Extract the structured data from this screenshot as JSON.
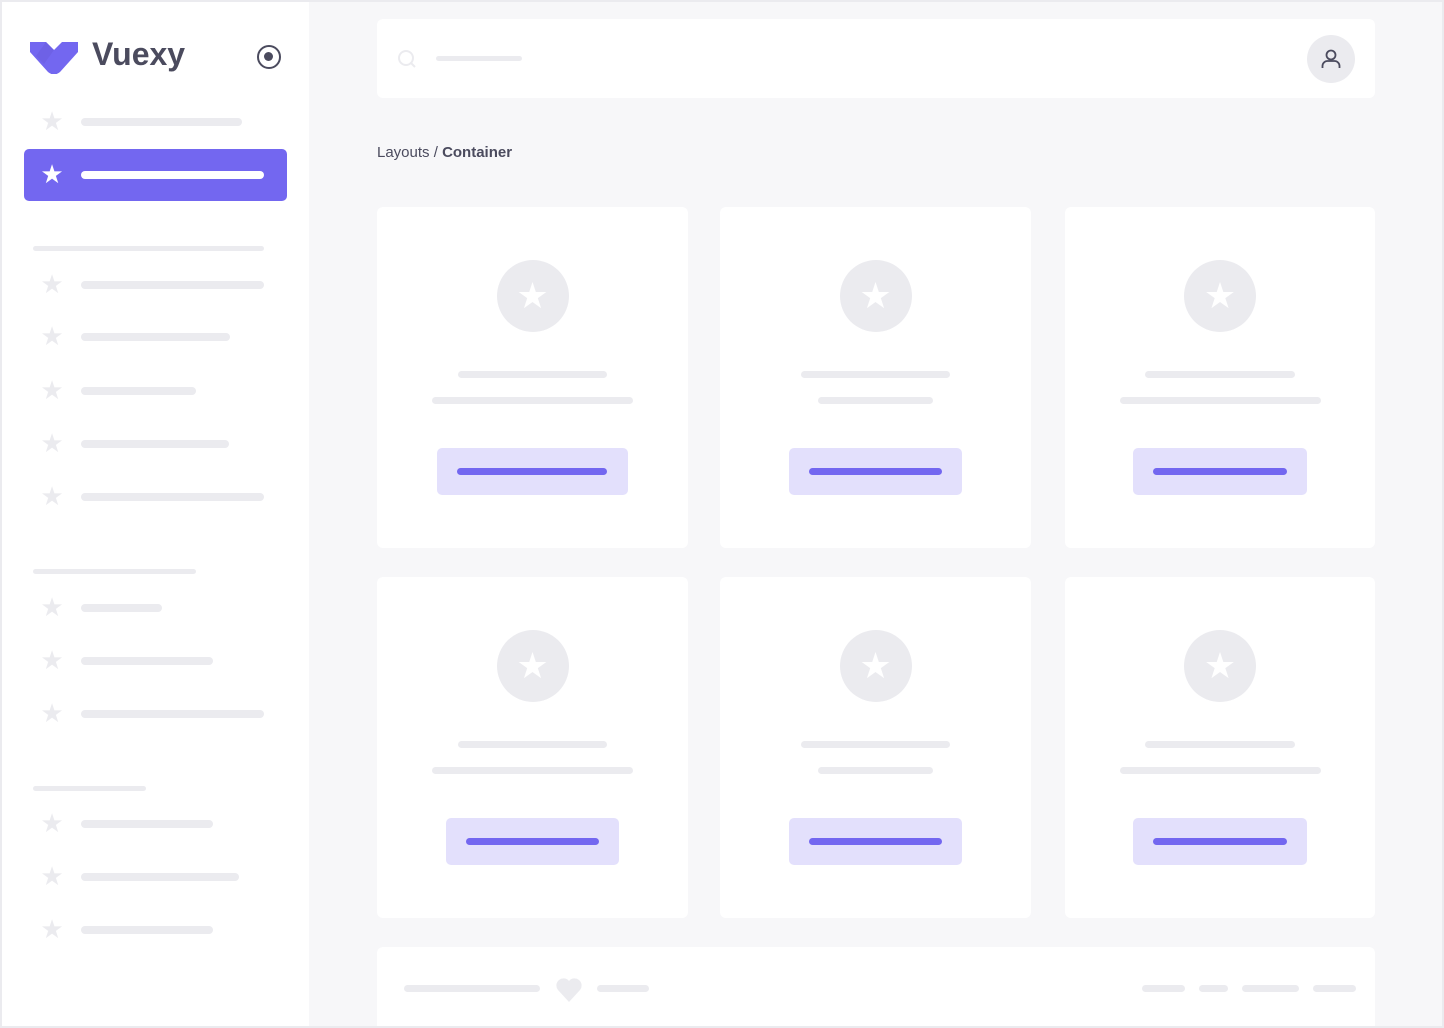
{
  "brand": {
    "name": "Vuexy",
    "color": "#7367f0"
  },
  "sidebar": {
    "toggle_icon": "radio-circle-icon",
    "active_index": 1
  },
  "topbar": {
    "search_icon": "search-icon",
    "avatar_icon": "user-icon"
  },
  "breadcrumb": {
    "parent": "Layouts",
    "separator": "/",
    "current": "Container"
  },
  "footer": {
    "icon": "heart-icon"
  },
  "colors": {
    "accent": "#7367f0",
    "accent_light": "#e3e0fc",
    "placeholder": "#ebebef",
    "background": "#f7f7f9",
    "text": "#4b4b5e"
  }
}
